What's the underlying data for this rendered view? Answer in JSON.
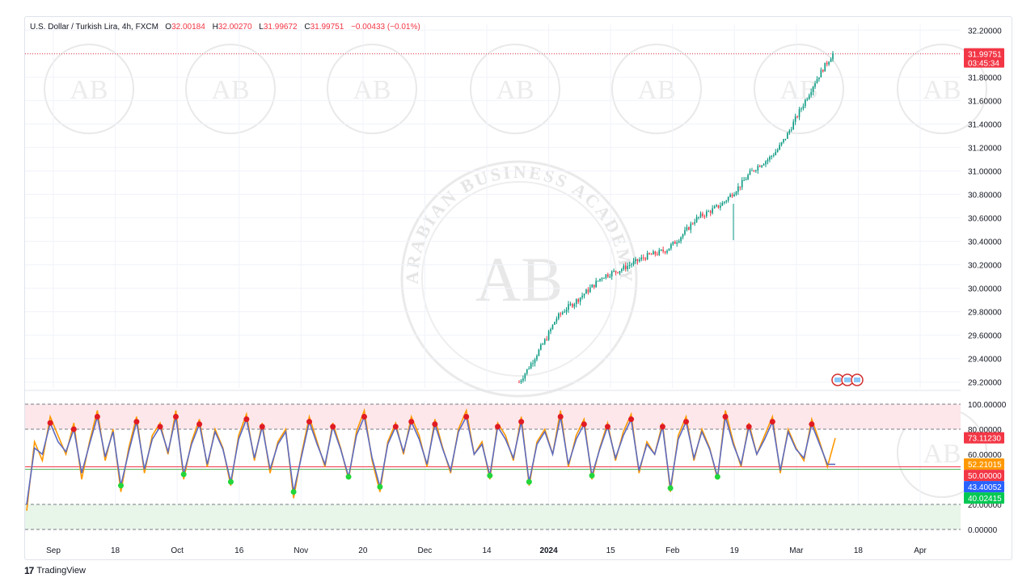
{
  "header": {
    "symbol": "U.S. Dollar / Turkish Lira, 4h, FXCM",
    "o_label": "O",
    "o_value": "32.00184",
    "h_label": "H",
    "h_value": "32.00270",
    "l_label": "L",
    "l_value": "31.99672",
    "c_label": "C",
    "c_value": "31.99751",
    "change": "−0.00433 (−0.01%)"
  },
  "price_panel": {
    "y_ticks": [
      "32.20000",
      "32.00000",
      "31.80000",
      "31.60000",
      "31.40000",
      "31.20000",
      "31.00000",
      "30.80000",
      "30.60000",
      "30.40000",
      "30.20000",
      "30.00000",
      "29.80000",
      "29.60000",
      "29.40000",
      "29.20000"
    ],
    "last_price": "31.99751",
    "countdown": "03:45:34",
    "last_price_color": "#f23645"
  },
  "osc_panel": {
    "y_ticks": [
      "100.00000",
      "80.00000",
      "60.00000",
      "40.00000",
      "20.00000",
      "0.00000"
    ],
    "badges": [
      {
        "text": "73.11230",
        "color": "#f23645"
      },
      {
        "text": "52.21015",
        "color": "#ff9800"
      },
      {
        "text": "50.00000",
        "color": "#f23645"
      },
      {
        "text": "43.40052",
        "color": "#2962ff"
      },
      {
        "text": "40.02415",
        "color": "#00c853"
      }
    ]
  },
  "x_axis": {
    "labels": [
      "Sep",
      "18",
      "Oct",
      "16",
      "Nov",
      "20",
      "Dec",
      "14",
      "2024",
      "15",
      "Feb",
      "19",
      "Mar",
      "18",
      "Apr"
    ]
  },
  "watermark": {
    "text": "ARABIAN BUSINESS ACADEMY",
    "monogram": "AB"
  },
  "footer": {
    "logo": "17",
    "brand": "TradingView"
  },
  "chart_data": [
    {
      "type": "candlestick",
      "title": "U.S. Dollar / Turkish Lira, 4h, FXCM",
      "ylim": [
        29.15,
        32.25
      ],
      "x": [
        "Dec 19",
        "Dec 20",
        "Dec 22",
        "Dec 26",
        "Dec 28",
        "Jan 1",
        "Jan 3",
        "Jan 5",
        "Jan 8",
        "Jan 10",
        "Jan 12",
        "Jan 15",
        "Jan 17",
        "Jan 19",
        "Jan 22",
        "Jan 24",
        "Jan 26",
        "Jan 29",
        "Jan 31",
        "Feb 2",
        "Feb 5",
        "Feb 7",
        "Feb 9",
        "Feb 12",
        "Feb 14",
        "Feb 16",
        "Feb 19",
        "Feb 21",
        "Feb 23",
        "Feb 26",
        "Feb 28",
        "Mar 1",
        "Mar 4",
        "Mar 6",
        "Mar 8"
      ],
      "close": [
        29.2,
        29.32,
        29.45,
        29.58,
        29.74,
        29.82,
        29.88,
        29.95,
        30.02,
        30.1,
        30.13,
        30.16,
        30.2,
        30.24,
        30.28,
        30.3,
        30.33,
        30.4,
        30.48,
        30.58,
        30.63,
        30.67,
        30.72,
        30.8,
        30.88,
        30.98,
        31.05,
        31.1,
        31.18,
        31.3,
        31.45,
        31.6,
        31.75,
        31.88,
        31.99751
      ]
    },
    {
      "type": "line",
      "title": "Oscillator",
      "ylim": [
        0,
        100
      ],
      "levels": [
        100,
        80,
        50,
        20,
        0
      ],
      "series": [
        {
          "values": [
            15,
            70,
            55,
            90,
            75,
            60,
            85,
            40,
            70,
            95,
            55,
            80,
            30,
            65,
            90,
            45,
            75,
            85,
            60,
            95,
            40,
            70,
            88,
            50,
            80,
            65,
            35,
            75,
            92,
            55,
            85,
            45,
            70,
            80,
            25,
            60,
            90,
            70,
            50,
            85,
            65,
            40,
            78,
            95,
            55,
            30,
            70,
            85,
            60,
            90,
            75,
            50,
            88,
            65,
            45,
            80,
            95,
            60,
            70,
            40,
            85,
            75,
            55,
            90,
            35,
            70,
            80,
            60,
            95,
            50,
            75,
            88,
            40,
            65,
            85,
            55,
            78,
            92,
            45,
            70,
            60,
            85,
            30,
            75,
            90,
            55,
            80,
            65,
            40,
            95,
            70,
            50,
            85,
            60,
            75,
            90,
            45,
            80,
            65,
            55,
            88,
            70,
            50,
            73
          ]
        },
        {
          "values": [
            20,
            65,
            60,
            85,
            70,
            62,
            80,
            45,
            68,
            90,
            58,
            78,
            35,
            62,
            86,
            48,
            72,
            82,
            62,
            90,
            44,
            68,
            84,
            52,
            78,
            64,
            38,
            72,
            88,
            57,
            82,
            48,
            68,
            78,
            30,
            58,
            86,
            68,
            52,
            82,
            64,
            42,
            75,
            90,
            57,
            34,
            68,
            82,
            62,
            86,
            72,
            52,
            84,
            64,
            47,
            78,
            90,
            60,
            68,
            43,
            82,
            72,
            57,
            86,
            38,
            68,
            78,
            60,
            90,
            52,
            72,
            84,
            43,
            64,
            82,
            57,
            75,
            88,
            47,
            68,
            60,
            82,
            33,
            72,
            86,
            57,
            78,
            64,
            42,
            90,
            68,
            52,
            82,
            60,
            72,
            86,
            47,
            78,
            64,
            57,
            84,
            68,
            52,
            52
          ]
        }
      ]
    }
  ]
}
